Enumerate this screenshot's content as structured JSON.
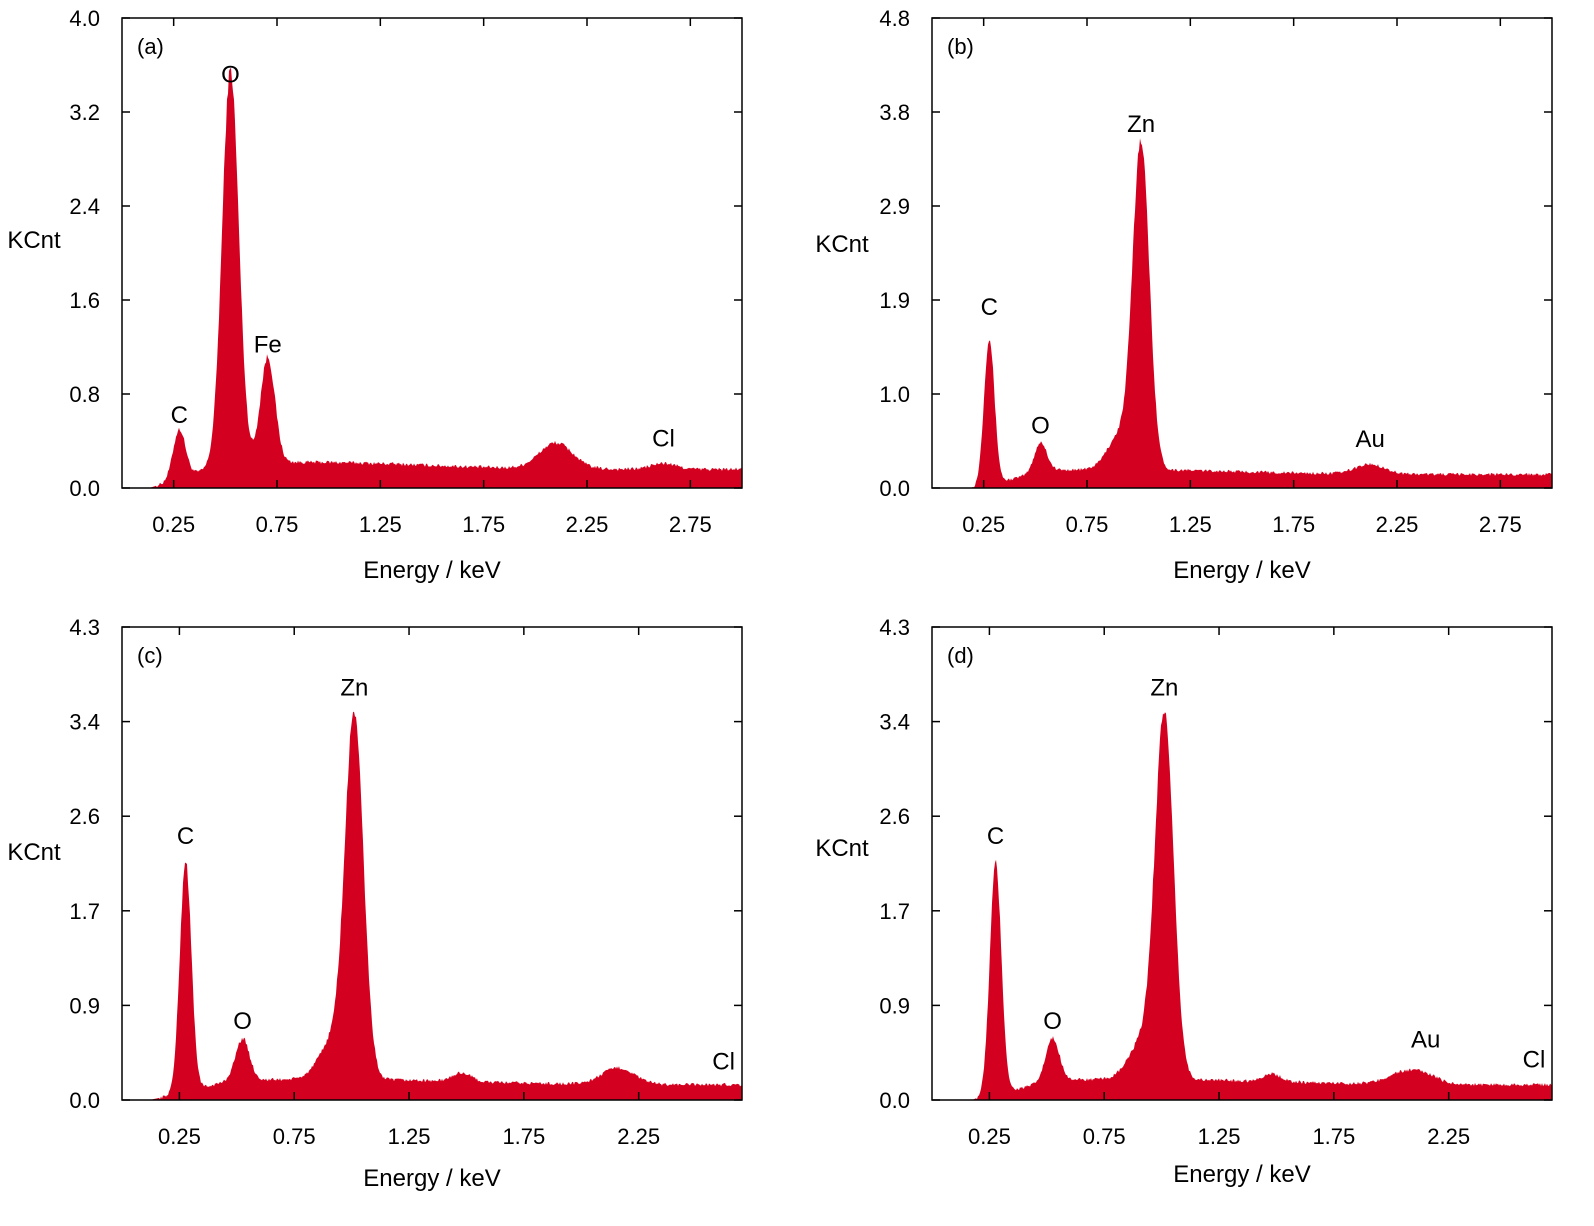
{
  "figure": {
    "colors": {
      "spectrum_fill": "#d4001f",
      "axis": "#000000",
      "background": "#ffffff"
    }
  },
  "chart_data": [
    {
      "panel": "(a)",
      "type": "area",
      "xlabel": "Energy / keV",
      "ylabel": "KCnt",
      "xlim": [
        0.0,
        3.0
      ],
      "ylim": [
        0.0,
        4.0
      ],
      "x_ticks": [
        "0.25",
        "0.75",
        "1.25",
        "1.75",
        "2.25",
        "2.75"
      ],
      "y_ticks": [
        "0.0",
        "0.8",
        "1.6",
        "2.4",
        "3.2",
        "4.0"
      ],
      "peaks": [
        {
          "label": "C",
          "x": 0.277,
          "height": 0.42,
          "width": 0.03,
          "label_y": 0.62
        },
        {
          "label": "O",
          "x": 0.525,
          "height": 3.35,
          "width": 0.04,
          "label_y": 3.52
        },
        {
          "label": "Fe",
          "x": 0.705,
          "height": 0.9,
          "width": 0.035,
          "label_y": 1.22
        },
        {
          "label": "Cl",
          "x": 2.62,
          "height": 0.05,
          "width": 0.06,
          "label_y": 0.42
        }
      ],
      "bumps": [
        {
          "x": 2.1,
          "height": 0.22,
          "width": 0.08
        }
      ],
      "background": {
        "start": 0.13,
        "level": 0.16,
        "rise": 0.06,
        "tail": 0.14
      }
    },
    {
      "panel": "(b)",
      "type": "area",
      "xlabel": "Energy / keV",
      "ylabel": "KCnt",
      "xlim": [
        0.0,
        3.0
      ],
      "ylim": [
        0.0,
        4.8
      ],
      "x_ticks": [
        "0.25",
        "0.75",
        "1.25",
        "1.75",
        "2.25",
        "2.75"
      ],
      "y_ticks": [
        "0.0",
        "1.0",
        "1.9",
        "2.9",
        "3.8",
        "4.8"
      ],
      "peaks": [
        {
          "label": "C",
          "x": 0.277,
          "height": 1.5,
          "width": 0.025,
          "label_y": 1.85
        },
        {
          "label": "O",
          "x": 0.525,
          "height": 0.3,
          "width": 0.03,
          "label_y": 0.64
        },
        {
          "label": "Zn",
          "x": 1.012,
          "height": 3.3,
          "width": 0.04,
          "label_y": 3.72
        },
        {
          "label": "Au",
          "x": 2.12,
          "height": 0.1,
          "width": 0.07,
          "label_y": 0.5
        }
      ],
      "bumps": [
        {
          "x": 0.91,
          "height": 0.35,
          "width": 0.06
        }
      ],
      "background": {
        "start": 0.2,
        "level": 0.14,
        "rise": 0.05,
        "tail": 0.11
      }
    },
    {
      "panel": "(c)",
      "type": "area",
      "xlabel": "Energy / keV",
      "ylabel": "KCnt",
      "xlim": [
        0.0,
        2.7
      ],
      "ylim": [
        0.0,
        4.3
      ],
      "x_ticks": [
        "0.25",
        "0.75",
        "1.25",
        "1.75",
        "2.25"
      ],
      "y_ticks": [
        "0.0",
        "0.9",
        "1.7",
        "2.6",
        "3.4",
        "4.3"
      ],
      "peaks": [
        {
          "label": "C",
          "x": 0.277,
          "height": 2.1,
          "width": 0.025,
          "label_y": 2.4
        },
        {
          "label": "O",
          "x": 0.525,
          "height": 0.38,
          "width": 0.03,
          "label_y": 0.72
        },
        {
          "label": "Zn",
          "x": 1.012,
          "height": 3.25,
          "width": 0.04,
          "label_y": 3.75
        },
        {
          "label": "Cl",
          "x": 2.62,
          "height": 0.0,
          "width": 0.05,
          "label_y": 0.35
        }
      ],
      "bumps": [
        {
          "x": 0.92,
          "height": 0.35,
          "width": 0.06
        },
        {
          "x": 1.48,
          "height": 0.08,
          "width": 0.04
        },
        {
          "x": 2.16,
          "height": 0.15,
          "width": 0.07
        }
      ],
      "background": {
        "start": 0.12,
        "level": 0.14,
        "rise": 0.05,
        "tail": 0.13
      }
    },
    {
      "panel": "(d)",
      "type": "area",
      "xlabel": "Energy / keV",
      "ylabel": "KCnt",
      "xlim": [
        0.0,
        2.7
      ],
      "ylim": [
        0.0,
        4.3
      ],
      "x_ticks": [
        "0.25",
        "0.75",
        "1.25",
        "1.75",
        "2.25"
      ],
      "y_ticks": [
        "0.0",
        "0.9",
        "1.7",
        "2.6",
        "3.4",
        "4.3"
      ],
      "peaks": [
        {
          "label": "C",
          "x": 0.277,
          "height": 2.1,
          "width": 0.025,
          "label_y": 2.4
        },
        {
          "label": "O",
          "x": 0.525,
          "height": 0.38,
          "width": 0.03,
          "label_y": 0.72
        },
        {
          "label": "Zn",
          "x": 1.012,
          "height": 3.25,
          "width": 0.04,
          "label_y": 3.75
        },
        {
          "label": "Au",
          "x": 2.15,
          "height": 0.07,
          "width": 0.06,
          "label_y": 0.55
        },
        {
          "label": "Cl",
          "x": 2.63,
          "height": 0.0,
          "width": 0.05,
          "label_y": 0.37
        }
      ],
      "bumps": [
        {
          "x": 0.92,
          "height": 0.35,
          "width": 0.06
        },
        {
          "x": 1.48,
          "height": 0.07,
          "width": 0.04
        },
        {
          "x": 2.05,
          "height": 0.1,
          "width": 0.07
        }
      ],
      "background": {
        "start": 0.17,
        "level": 0.14,
        "rise": 0.05,
        "tail": 0.12
      }
    }
  ]
}
